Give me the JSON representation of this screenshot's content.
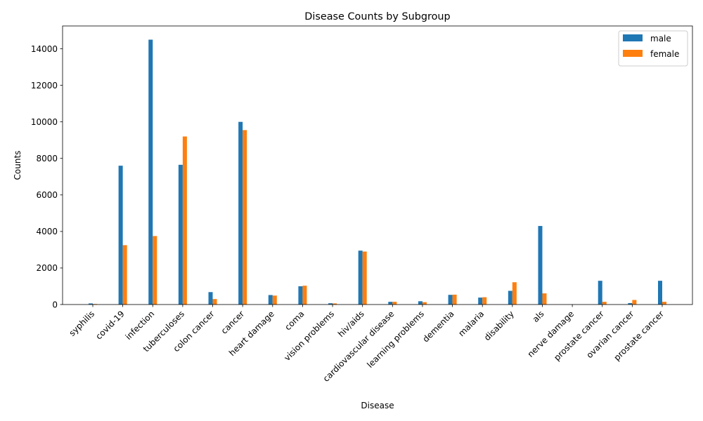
{
  "chart_data": {
    "type": "bar",
    "title": "Disease Counts by Subgroup",
    "xlabel": "Disease",
    "ylabel": "Counts",
    "ylim": [
      0,
      15250
    ],
    "yticks": [
      0,
      2000,
      4000,
      6000,
      8000,
      10000,
      12000,
      14000
    ],
    "legend_position": "top-right",
    "grid": false,
    "categories": [
      "syphilis",
      "covid-19",
      "infection",
      "tuberculoses",
      "colon cancer",
      "cancer",
      "heart damage",
      "coma",
      "vision problems",
      "hiv/aids",
      "cardiovascular disease",
      "learning problems",
      "dementia",
      "malaria",
      "disability",
      "als",
      "nerve damage",
      "prostate cancer",
      "ovarian cancer",
      "prostate cancer"
    ],
    "series": [
      {
        "name": "male",
        "color": "#1f77b4",
        "values": [
          60,
          7600,
          14500,
          7650,
          680,
          10000,
          520,
          1000,
          70,
          2950,
          150,
          180,
          530,
          380,
          750,
          4300,
          5,
          1300,
          80,
          1300
        ]
      },
      {
        "name": "female",
        "color": "#ff7f0e",
        "values": [
          30,
          3250,
          3750,
          9200,
          300,
          9550,
          490,
          1030,
          60,
          2900,
          150,
          130,
          540,
          400,
          1220,
          610,
          5,
          150,
          250,
          150
        ]
      }
    ]
  }
}
